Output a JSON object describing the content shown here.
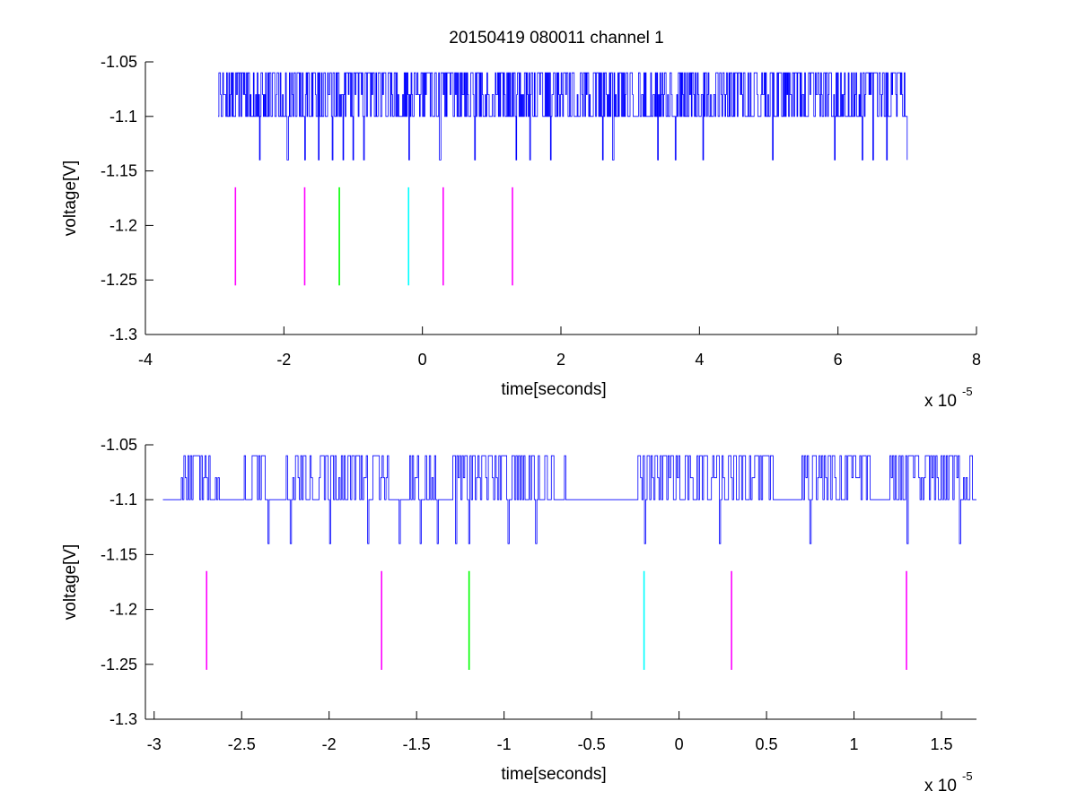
{
  "figure": {
    "title": "20150419 080011 channel 1"
  },
  "chart_data": [
    {
      "type": "line",
      "xlabel": "time[seconds]",
      "ylabel": "voltage[V]",
      "x_exponent": "x 10",
      "x_exponent_power": "-5",
      "xlim": [
        -4,
        8
      ],
      "ylim": [
        -1.3,
        -1.05
      ],
      "x_ticks": [
        -4,
        -2,
        0,
        2,
        4,
        6,
        8
      ],
      "x_tick_labels": [
        "-4",
        "-2",
        "0",
        "2",
        "4",
        "6",
        "8"
      ],
      "y_ticks": [
        -1.05,
        -1.1,
        -1.15,
        -1.2,
        -1.25,
        -1.3
      ],
      "y_tick_labels": [
        "-1.05",
        "-1.1",
        "-1.15",
        "-1.2",
        "-1.25",
        "-1.3"
      ],
      "grid": false,
      "series": [
        {
          "color": "#0000ff",
          "x_range": [
            -2.95,
            7.0
          ],
          "baseline": -1.1,
          "high": -1.06,
          "low": -1.14,
          "low_spike_times": [
            -2.35,
            -1.95,
            -1.7,
            -1.5,
            -1.3,
            -1.15,
            -1.0,
            -0.85,
            -0.2,
            0.25,
            0.75,
            1.35,
            1.55,
            1.85,
            2.6,
            2.75,
            3.4,
            3.65,
            4.05,
            5.05,
            5.95,
            6.35,
            6.5,
            6.7,
            7.0
          ]
        }
      ],
      "markers": [
        {
          "x": -2.7,
          "color": "#ff00ff",
          "y_top": -1.165,
          "y_bottom": -1.255
        },
        {
          "x": -1.7,
          "color": "#ff00ff",
          "y_top": -1.165,
          "y_bottom": -1.255
        },
        {
          "x": -1.2,
          "color": "#00ff00",
          "y_top": -1.165,
          "y_bottom": -1.255
        },
        {
          "x": -0.2,
          "color": "#00ffff",
          "y_top": -1.165,
          "y_bottom": -1.255
        },
        {
          "x": 0.3,
          "color": "#ff00ff",
          "y_top": -1.165,
          "y_bottom": -1.255
        },
        {
          "x": 1.3,
          "color": "#ff00ff",
          "y_top": -1.165,
          "y_bottom": -1.255
        }
      ]
    },
    {
      "type": "line",
      "xlabel": "time[seconds]",
      "ylabel": "voltage[V]",
      "x_exponent": "x 10",
      "x_exponent_power": "-5",
      "xlim": [
        -3.05,
        1.7
      ],
      "ylim": [
        -1.3,
        -1.05
      ],
      "x_ticks": [
        -3,
        -2.5,
        -2,
        -1.5,
        -1,
        -0.5,
        0,
        0.5,
        1,
        1.5
      ],
      "x_tick_labels": [
        "-3",
        "-2.5",
        "-2",
        "-1.5",
        "-1",
        "-0.5",
        "0",
        "0.5",
        "1",
        "1.5"
      ],
      "y_ticks": [
        -1.05,
        -1.1,
        -1.15,
        -1.2,
        -1.25,
        -1.3
      ],
      "y_tick_labels": [
        "-1.05",
        "-1.1",
        "-1.15",
        "-1.2",
        "-1.25",
        "-1.3"
      ],
      "grid": false,
      "series": [
        {
          "color": "#0000ff",
          "x_range": [
            -2.95,
            1.7
          ],
          "baseline": -1.1,
          "high": -1.06,
          "low": -1.14,
          "low_spike_times": [
            -2.35,
            -2.22,
            -2.0,
            -1.78,
            -1.6,
            -1.48,
            -1.38,
            -1.28,
            -1.2,
            -0.98,
            -0.82,
            -0.2,
            0.23,
            0.75,
            1.3,
            1.6
          ],
          "quiet_ranges": [
            [
              -2.95,
              -2.85
            ],
            [
              -2.63,
              -2.5
            ],
            [
              -2.35,
              -2.25
            ],
            [
              -1.65,
              -1.55
            ],
            [
              -1.38,
              -1.3
            ],
            [
              -0.65,
              -0.25
            ],
            [
              0.55,
              0.65
            ],
            [
              1.1,
              1.2
            ]
          ]
        }
      ],
      "markers": [
        {
          "x": -2.7,
          "color": "#ff00ff",
          "y_top": -1.165,
          "y_bottom": -1.255
        },
        {
          "x": -1.7,
          "color": "#ff00ff",
          "y_top": -1.165,
          "y_bottom": -1.255
        },
        {
          "x": -1.2,
          "color": "#00ff00",
          "y_top": -1.165,
          "y_bottom": -1.255
        },
        {
          "x": -0.2,
          "color": "#00ffff",
          "y_top": -1.165,
          "y_bottom": -1.255
        },
        {
          "x": 0.3,
          "color": "#ff00ff",
          "y_top": -1.165,
          "y_bottom": -1.255
        },
        {
          "x": 1.3,
          "color": "#ff00ff",
          "y_top": -1.165,
          "y_bottom": -1.255
        }
      ]
    }
  ]
}
